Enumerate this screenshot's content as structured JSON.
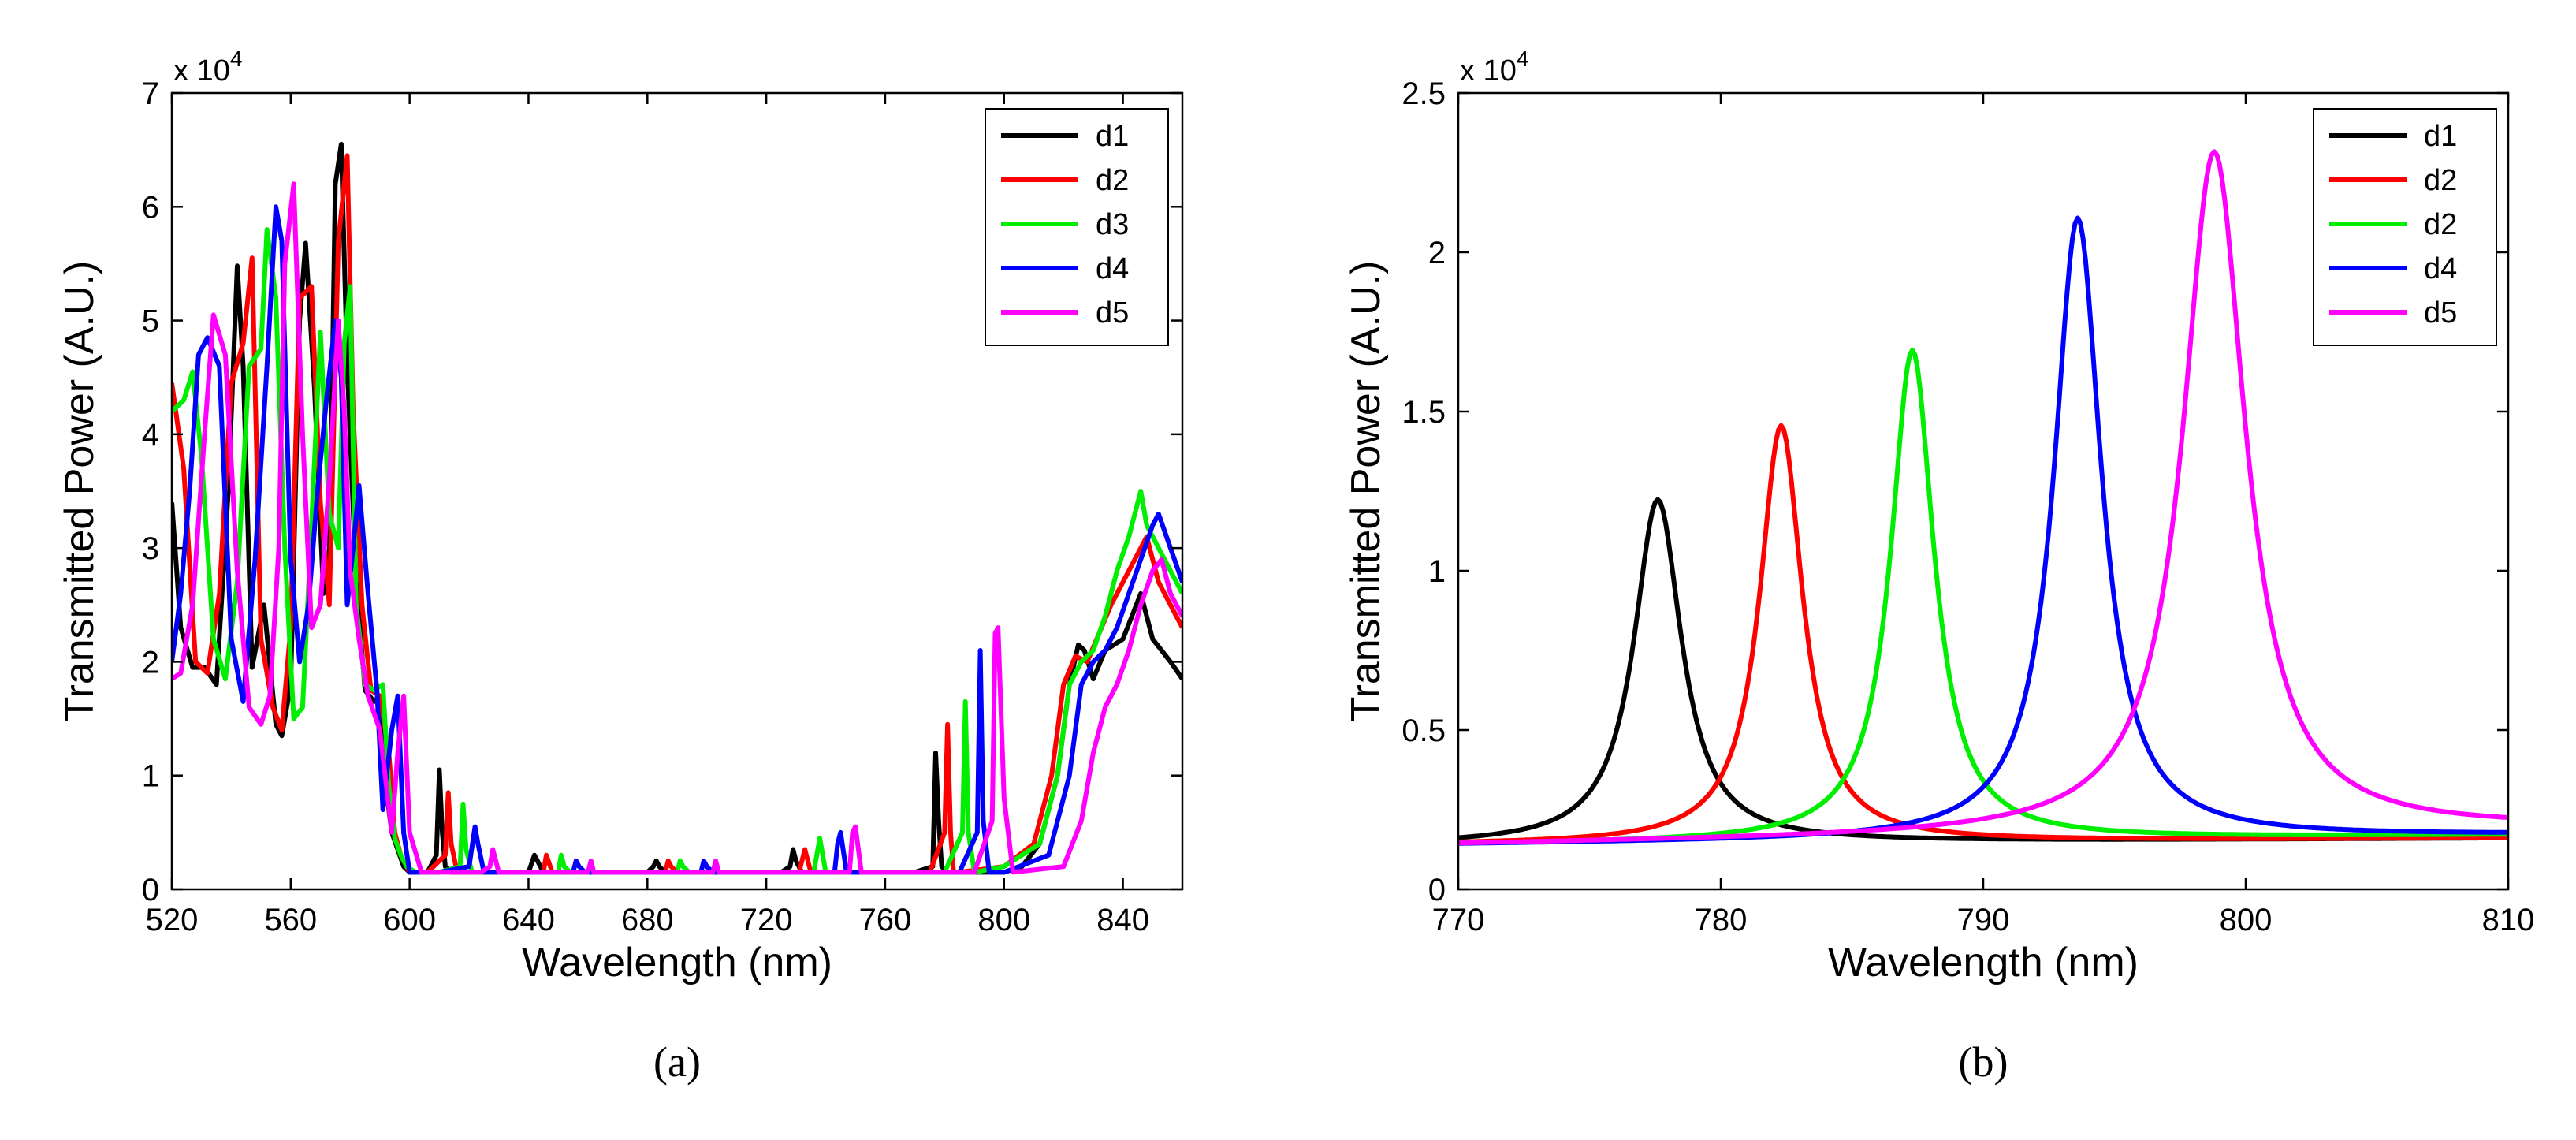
{
  "chart_data": [
    {
      "type": "line",
      "caption": "(a)",
      "xlabel": "Wavelength (nm)",
      "ylabel": "Transmitted Power (A.U.)",
      "y_multiplier": "x 10",
      "y_multiplier_exp": "4",
      "xlim": [
        520,
        860
      ],
      "ylim": [
        0,
        7
      ],
      "xticks": [
        520,
        560,
        600,
        640,
        680,
        720,
        760,
        800,
        840
      ],
      "yticks": [
        0,
        1,
        2,
        3,
        4,
        5,
        6,
        7
      ],
      "legend": [
        "d1",
        "d2",
        "d3",
        "d4",
        "d5"
      ],
      "series": [
        {
          "name": "d1",
          "color": "#000000",
          "x": [
            520,
            523,
            527,
            531,
            535,
            539,
            542,
            544,
            547,
            551,
            555,
            557,
            560,
            563,
            565,
            568,
            571,
            573,
            575,
            577,
            579,
            582,
            585,
            588,
            590,
            592,
            594,
            596,
            598,
            600,
            603,
            606,
            609,
            610,
            611,
            612,
            614,
            617,
            640,
            642,
            643,
            645,
            647,
            680,
            682,
            683,
            684,
            686,
            725,
            728,
            729,
            730,
            732,
            770,
            776,
            777,
            778,
            779,
            781,
            800,
            806,
            812,
            818,
            822,
            825,
            827,
            830,
            834,
            840,
            846,
            850,
            856,
            860
          ],
          "y": [
            3.4,
            2.3,
            1.95,
            1.95,
            1.8,
            3.5,
            5.48,
            4.6,
            1.95,
            2.5,
            1.45,
            1.35,
            1.8,
            5.0,
            5.68,
            4.4,
            2.6,
            2.9,
            6.2,
            6.55,
            4.6,
            2.7,
            1.75,
            1.65,
            1.7,
            0.9,
            0.5,
            0.35,
            0.2,
            0.15,
            0.15,
            0.15,
            0.3,
            1.05,
            0.5,
            0.2,
            0.15,
            0.15,
            0.15,
            0.3,
            0.25,
            0.15,
            0.15,
            0.15,
            0.2,
            0.25,
            0.2,
            0.15,
            0.15,
            0.2,
            0.35,
            0.25,
            0.15,
            0.15,
            0.2,
            1.2,
            0.6,
            0.2,
            0.15,
            0.15,
            0.2,
            0.4,
            1.0,
            1.8,
            2.15,
            2.1,
            1.85,
            2.1,
            2.2,
            2.6,
            2.2,
            2.0,
            1.85
          ]
        },
        {
          "name": "d2",
          "color": "#ff0000",
          "x": [
            520,
            524,
            528,
            532,
            536,
            540,
            544,
            547,
            550,
            554,
            557,
            560,
            563,
            567,
            570,
            573,
            576,
            579,
            581,
            584,
            587,
            590,
            593,
            595,
            597,
            600,
            606,
            612,
            613,
            614,
            616,
            619,
            645,
            646,
            648,
            650,
            686,
            687,
            688,
            690,
            731,
            732,
            733,
            735,
            775,
            780,
            781,
            782,
            783,
            785,
            800,
            810,
            816,
            820,
            824,
            828,
            832,
            836,
            842,
            848,
            852,
            856,
            860
          ],
          "y": [
            4.45,
            3.7,
            2.0,
            1.9,
            2.6,
            4.45,
            4.8,
            5.55,
            2.2,
            1.6,
            1.4,
            2.3,
            5.2,
            5.3,
            3.4,
            2.5,
            5.7,
            6.45,
            4.2,
            2.5,
            1.75,
            1.7,
            1.2,
            0.5,
            0.3,
            0.15,
            0.15,
            0.3,
            0.85,
            0.4,
            0.15,
            0.15,
            0.15,
            0.3,
            0.15,
            0.15,
            0.15,
            0.25,
            0.2,
            0.15,
            0.15,
            0.25,
            0.35,
            0.15,
            0.15,
            0.5,
            1.45,
            0.5,
            0.15,
            0.15,
            0.2,
            0.4,
            1.0,
            1.8,
            2.05,
            2.0,
            2.25,
            2.5,
            2.8,
            3.1,
            2.7,
            2.5,
            2.3
          ]
        },
        {
          "name": "d3",
          "color": "#00ee00",
          "x": [
            520,
            524,
            527,
            530,
            534,
            538,
            542,
            546,
            550,
            552,
            555,
            558,
            561,
            564,
            567,
            570,
            573,
            576,
            578,
            580,
            582,
            585,
            588,
            591,
            593,
            595,
            597,
            599,
            602,
            610,
            617,
            618,
            619,
            621,
            623,
            650,
            651,
            652,
            654,
            690,
            691,
            692,
            694,
            736,
            737,
            738,
            740,
            780,
            786,
            787,
            788,
            790,
            800,
            812,
            818,
            822,
            826,
            830,
            834,
            838,
            842,
            846,
            848,
            852,
            856,
            860
          ],
          "y": [
            4.2,
            4.3,
            4.55,
            3.8,
            2.2,
            1.85,
            2.7,
            4.6,
            4.75,
            5.8,
            5.2,
            3.0,
            1.5,
            1.6,
            3.2,
            4.9,
            3.3,
            3.0,
            4.8,
            5.3,
            2.5,
            1.8,
            1.75,
            1.8,
            0.9,
            0.45,
            0.3,
            0.2,
            0.15,
            0.15,
            0.2,
            0.75,
            0.35,
            0.15,
            0.15,
            0.15,
            0.3,
            0.2,
            0.15,
            0.15,
            0.25,
            0.2,
            0.15,
            0.15,
            0.3,
            0.45,
            0.15,
            0.15,
            0.5,
            1.65,
            0.5,
            0.15,
            0.2,
            0.4,
            1.0,
            1.8,
            2.0,
            2.1,
            2.4,
            2.8,
            3.1,
            3.5,
            3.2,
            3.0,
            2.8,
            2.6
          ]
        },
        {
          "name": "d4",
          "color": "#0000ff",
          "x": [
            520,
            523,
            526,
            529,
            532,
            536,
            540,
            544,
            548,
            552,
            555,
            557,
            560,
            563,
            566,
            569,
            572,
            575,
            577,
            579,
            581,
            583,
            586,
            589,
            591,
            594,
            596,
            598,
            600,
            603,
            610,
            620,
            622,
            623,
            625,
            627,
            655,
            656,
            657,
            659,
            698,
            699,
            700,
            702,
            743,
            744,
            745,
            747,
            785,
            791,
            792,
            793,
            795,
            800,
            815,
            822,
            826,
            830,
            834,
            838,
            842,
            846,
            850,
            852,
            856,
            860
          ],
          "y": [
            2.0,
            2.6,
            3.5,
            4.7,
            4.85,
            4.6,
            2.2,
            1.65,
            2.9,
            4.6,
            6.0,
            5.7,
            2.9,
            2.0,
            2.5,
            3.5,
            4.3,
            5.0,
            4.5,
            2.5,
            3.0,
            3.55,
            2.6,
            1.75,
            0.7,
            1.4,
            1.7,
            0.5,
            0.15,
            0.15,
            0.15,
            0.2,
            0.55,
            0.4,
            0.15,
            0.15,
            0.15,
            0.25,
            0.2,
            0.15,
            0.15,
            0.25,
            0.2,
            0.15,
            0.15,
            0.4,
            0.5,
            0.15,
            0.15,
            0.5,
            2.1,
            0.6,
            0.15,
            0.15,
            0.3,
            1.0,
            1.8,
            2.0,
            2.1,
            2.3,
            2.6,
            2.9,
            3.2,
            3.3,
            3.0,
            2.7
          ]
        },
        {
          "name": "d5",
          "color": "#ff00ff",
          "x": [
            520,
            523,
            527,
            531,
            534,
            538,
            542,
            546,
            550,
            553,
            556,
            558,
            561,
            564,
            567,
            570,
            573,
            576,
            578,
            580,
            583,
            586,
            590,
            594,
            596,
            598,
            600,
            604,
            612,
            624,
            627,
            628,
            630,
            632,
            660,
            661,
            662,
            664,
            702,
            703,
            704,
            706,
            748,
            749,
            750,
            752,
            790,
            796,
            797,
            798,
            800,
            803,
            820,
            826,
            830,
            834,
            838,
            842,
            846,
            850,
            853,
            856,
            860
          ],
          "y": [
            1.85,
            1.9,
            2.5,
            4.0,
            5.05,
            4.7,
            2.8,
            1.6,
            1.45,
            1.7,
            3.0,
            5.5,
            6.2,
            4.0,
            2.3,
            2.5,
            3.6,
            5.0,
            4.2,
            2.8,
            2.2,
            1.7,
            1.4,
            0.5,
            1.2,
            1.7,
            0.5,
            0.15,
            0.15,
            0.15,
            0.2,
            0.35,
            0.15,
            0.15,
            0.15,
            0.25,
            0.15,
            0.15,
            0.15,
            0.25,
            0.15,
            0.15,
            0.15,
            0.5,
            0.55,
            0.15,
            0.15,
            0.6,
            2.25,
            2.3,
            0.8,
            0.15,
            0.2,
            0.6,
            1.2,
            1.6,
            1.8,
            2.1,
            2.5,
            2.8,
            2.9,
            2.6,
            2.4
          ]
        }
      ]
    },
    {
      "type": "line",
      "caption": "(b)",
      "xlabel": "Wavelength (nm)",
      "ylabel": "Transmitted Power (A.U.)",
      "y_multiplier": "x 10",
      "y_multiplier_exp": "4",
      "xlim": [
        770,
        810
      ],
      "ylim": [
        0,
        2.5
      ],
      "xticks": [
        770,
        780,
        790,
        800,
        810
      ],
      "yticks": [
        0,
        0.5,
        1,
        1.5,
        2,
        2.5
      ],
      "legend": [
        "d1",
        "d2",
        "d2",
        "d4",
        "d5"
      ],
      "series": [
        {
          "name": "d1",
          "color": "#000000",
          "peak": 777.6,
          "peak_value": 1.22,
          "baseline": 0.14,
          "base_end": 0.16,
          "gamma": 1.1
        },
        {
          "name": "d2",
          "color": "#ff0000",
          "peak": 782.3,
          "peak_value": 1.45,
          "baseline": 0.14,
          "base_end": 0.16,
          "gamma": 1.0
        },
        {
          "name": "d2",
          "color": "#00ee00",
          "peak": 787.3,
          "peak_value": 1.68,
          "baseline": 0.14,
          "base_end": 0.17,
          "gamma": 1.0
        },
        {
          "name": "d4",
          "color": "#0000ff",
          "peak": 793.6,
          "peak_value": 2.09,
          "baseline": 0.14,
          "base_end": 0.17,
          "gamma": 1.1
        },
        {
          "name": "d5",
          "color": "#ff00ff",
          "peak": 798.8,
          "peak_value": 2.28,
          "baseline": 0.14,
          "base_end": 0.19,
          "gamma": 1.45
        }
      ]
    }
  ]
}
